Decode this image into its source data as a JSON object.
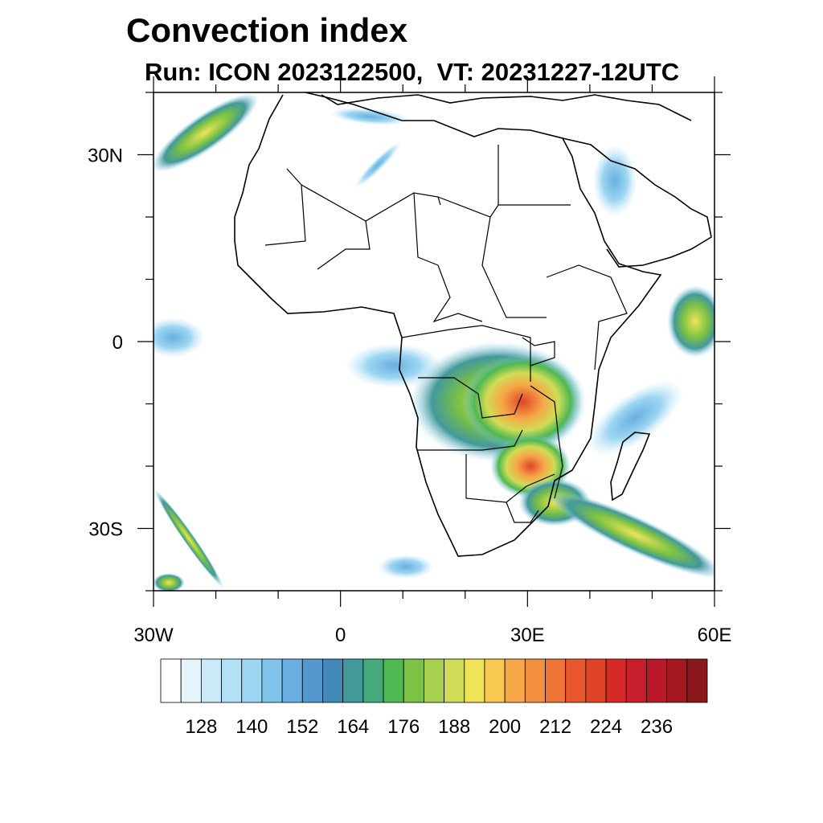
{
  "title": "Convection index",
  "subtitle": "Run: ICON 2023122500,  VT: 20231227-12UTC",
  "map": {
    "lon_range": [
      -30,
      60
    ],
    "lat_range": [
      -40,
      40
    ],
    "lon_ticks": [
      {
        "value": -30,
        "label": "30W"
      },
      {
        "value": 0,
        "label": "0"
      },
      {
        "value": 30,
        "label": "30E"
      },
      {
        "value": 60,
        "label": "60E"
      }
    ],
    "lat_ticks": [
      {
        "value": 30,
        "label": "30N"
      },
      {
        "value": 0,
        "label": "0"
      },
      {
        "value": -30,
        "label": "30S"
      }
    ]
  },
  "colorbar": {
    "colors": [
      "#ffffff",
      "#e6f5fc",
      "#cbe9f8",
      "#b2e1f6",
      "#9dd6f2",
      "#80c4ec",
      "#69afe0",
      "#5598d0",
      "#4288b8",
      "#42999a",
      "#46a97c",
      "#50b852",
      "#7cc244",
      "#a7d04e",
      "#d0dc56",
      "#efe458",
      "#f8c850",
      "#f6a848",
      "#f39040",
      "#ee7336",
      "#e8572e",
      "#e04428",
      "#d62a28",
      "#c81e2c",
      "#b81828",
      "#a41820",
      "#8c181c"
    ],
    "labels": [
      "128",
      "140",
      "152",
      "164",
      "176",
      "188",
      "200",
      "212",
      "224",
      "236"
    ]
  }
}
